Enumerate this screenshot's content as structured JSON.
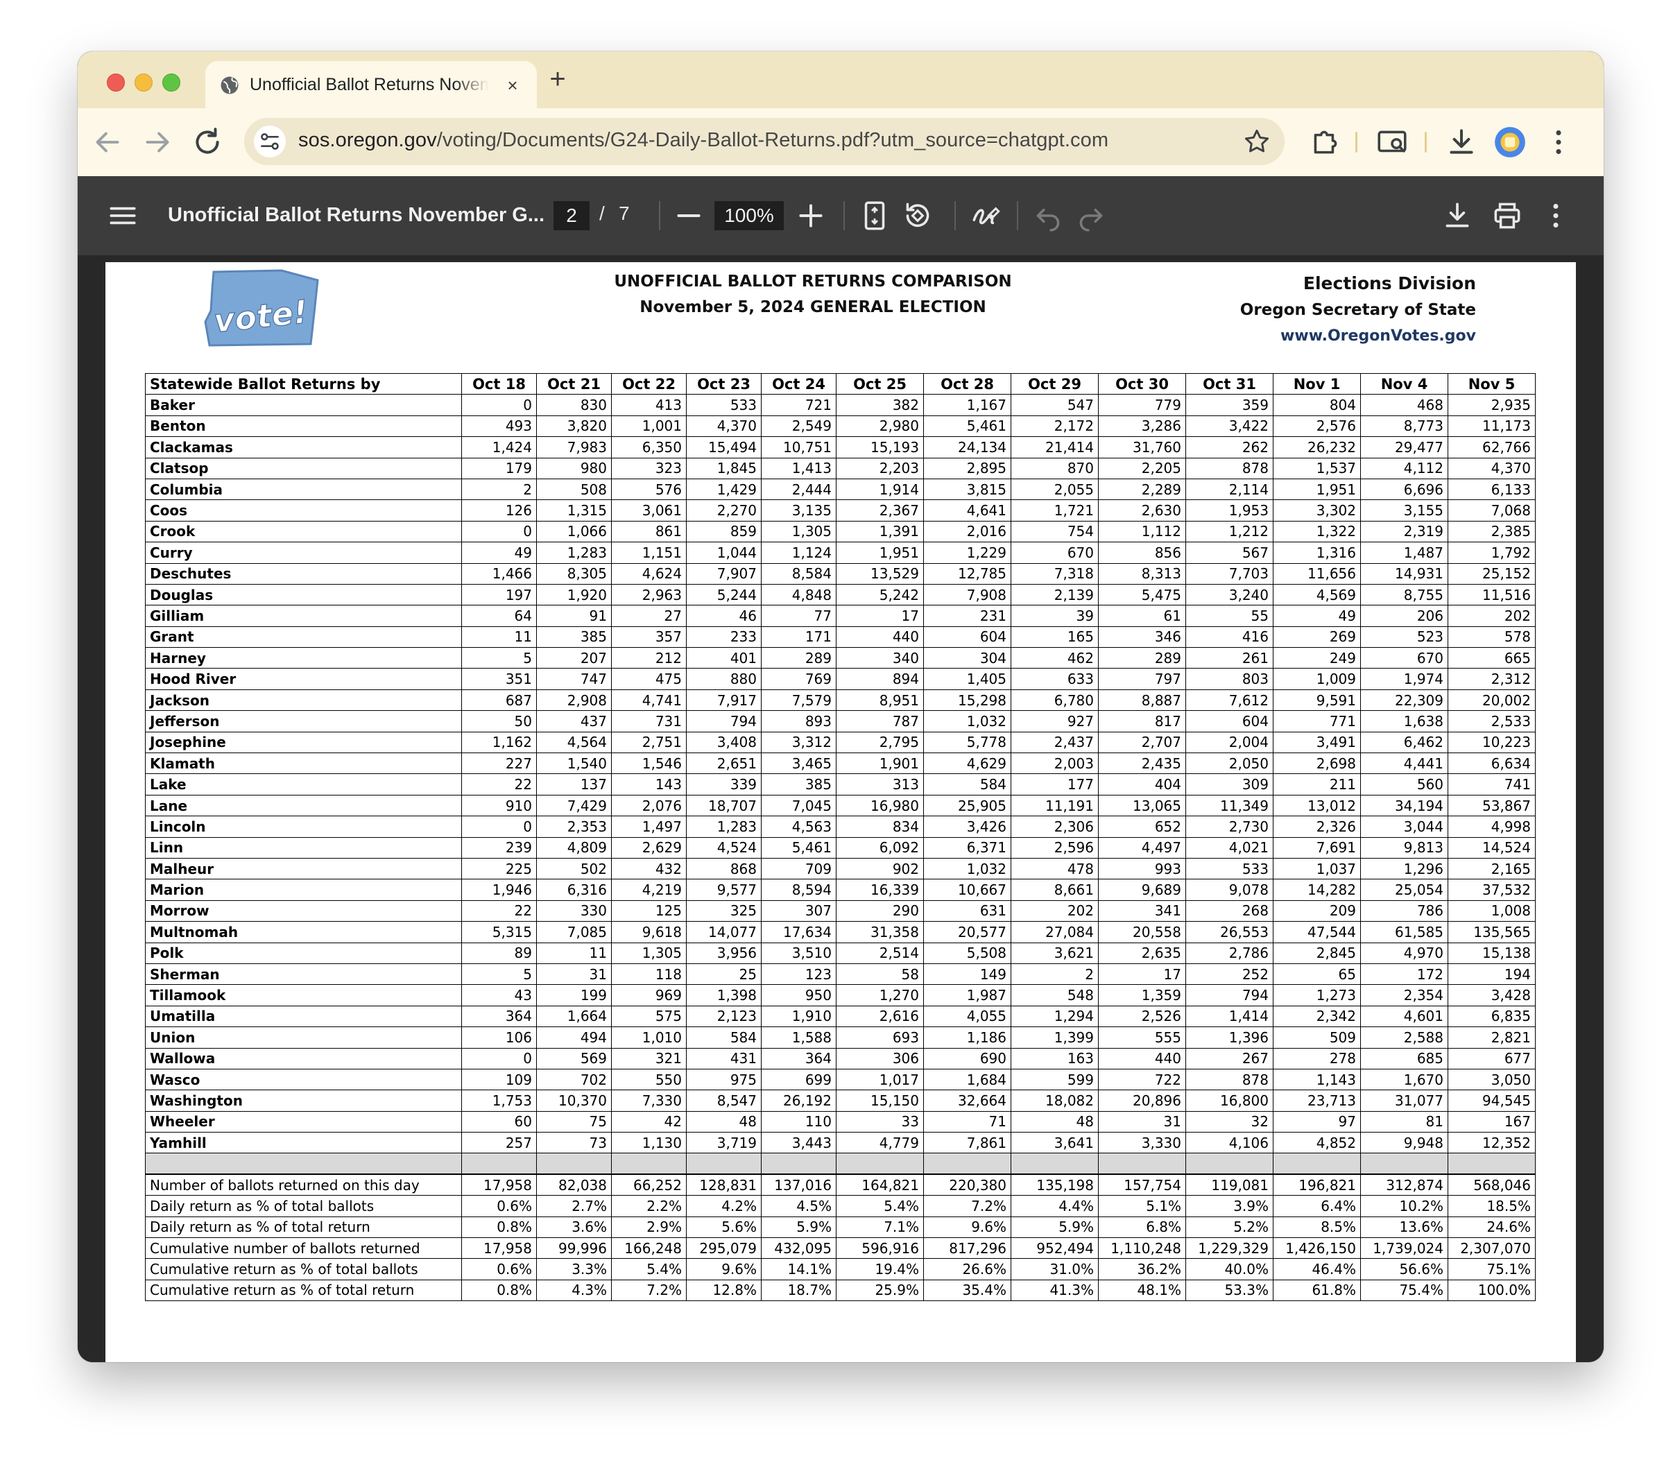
{
  "browser": {
    "tab_title": "Unofficial Ballot Returns November General Election",
    "close_label": "×",
    "new_tab_label": "+",
    "url_host": "sos.oregon.gov",
    "url_path": "/voting/Documents/G24-Daily-Ballot-Returns.pdf?utm_source=chatgpt.com",
    "icons": [
      "back-arrow-icon",
      "forward-arrow-icon",
      "reload-icon",
      "site-info-icon",
      "star-icon",
      "extensions-icon",
      "cast-screen-icon",
      "download-icon",
      "profile-icon",
      "menu-kebab-icon"
    ]
  },
  "viewer": {
    "title": "Unofficial Ballot Returns November G...",
    "page_current": "2",
    "page_sep": "/",
    "page_total": "7",
    "zoom": "100%",
    "zoom_out_label": "−",
    "zoom_in_label": "+",
    "colors": {
      "toolbar": "#3c3c3c",
      "background": "#282828"
    }
  },
  "document": {
    "logo_text": "vote!",
    "title_line1": "UNOFFICIAL BALLOT RETURNS COMPARISON",
    "title_line2": "November 5, 2024 GENERAL ELECTION",
    "division_line1": "Elections Division",
    "division_line2": "Oregon Secretary of State",
    "division_line3": "www.OregonVotes.gov"
  },
  "table": {
    "first_header": "Statewide Ballot Returns by",
    "dates": [
      "Oct 18",
      "Oct 21",
      "Oct 22",
      "Oct 23",
      "Oct 24",
      "Oct 25",
      "Oct 28",
      "Oct 29",
      "Oct 30",
      "Oct 31",
      "Nov 1",
      "Nov 4",
      "Nov 5"
    ],
    "counties": [
      {
        "name": "Baker",
        "values": [
          "0",
          "830",
          "413",
          "533",
          "721",
          "382",
          "1,167",
          "547",
          "779",
          "359",
          "804",
          "468",
          "2,935"
        ]
      },
      {
        "name": "Benton",
        "values": [
          "493",
          "3,820",
          "1,001",
          "4,370",
          "2,549",
          "2,980",
          "5,461",
          "2,172",
          "3,286",
          "3,422",
          "2,576",
          "8,773",
          "11,173"
        ]
      },
      {
        "name": "Clackamas",
        "values": [
          "1,424",
          "7,983",
          "6,350",
          "15,494",
          "10,751",
          "15,193",
          "24,134",
          "21,414",
          "31,760",
          "262",
          "26,232",
          "29,477",
          "62,766"
        ]
      },
      {
        "name": "Clatsop",
        "values": [
          "179",
          "980",
          "323",
          "1,845",
          "1,413",
          "2,203",
          "2,895",
          "870",
          "2,205",
          "878",
          "1,537",
          "4,112",
          "4,370"
        ]
      },
      {
        "name": "Columbia",
        "values": [
          "2",
          "508",
          "576",
          "1,429",
          "2,444",
          "1,914",
          "3,815",
          "2,055",
          "2,289",
          "2,114",
          "1,951",
          "6,696",
          "6,133"
        ]
      },
      {
        "name": "Coos",
        "values": [
          "126",
          "1,315",
          "3,061",
          "2,270",
          "3,135",
          "2,367",
          "4,641",
          "1,721",
          "2,630",
          "1,953",
          "3,302",
          "3,155",
          "7,068"
        ]
      },
      {
        "name": "Crook",
        "values": [
          "0",
          "1,066",
          "861",
          "859",
          "1,305",
          "1,391",
          "2,016",
          "754",
          "1,112",
          "1,212",
          "1,322",
          "2,319",
          "2,385"
        ]
      },
      {
        "name": "Curry",
        "values": [
          "49",
          "1,283",
          "1,151",
          "1,044",
          "1,124",
          "1,951",
          "1,229",
          "670",
          "856",
          "567",
          "1,316",
          "1,487",
          "1,792"
        ]
      },
      {
        "name": "Deschutes",
        "values": [
          "1,466",
          "8,305",
          "4,624",
          "7,907",
          "8,584",
          "13,529",
          "12,785",
          "7,318",
          "8,313",
          "7,703",
          "11,656",
          "14,931",
          "25,152"
        ]
      },
      {
        "name": "Douglas",
        "values": [
          "197",
          "1,920",
          "2,963",
          "5,244",
          "4,848",
          "5,242",
          "7,908",
          "2,139",
          "5,475",
          "3,240",
          "4,569",
          "8,755",
          "11,516"
        ]
      },
      {
        "name": "Gilliam",
        "values": [
          "64",
          "91",
          "27",
          "46",
          "77",
          "17",
          "231",
          "39",
          "61",
          "55",
          "49",
          "206",
          "202"
        ]
      },
      {
        "name": "Grant",
        "values": [
          "11",
          "385",
          "357",
          "233",
          "171",
          "440",
          "604",
          "165",
          "346",
          "416",
          "269",
          "523",
          "578"
        ]
      },
      {
        "name": "Harney",
        "values": [
          "5",
          "207",
          "212",
          "401",
          "289",
          "340",
          "304",
          "462",
          "289",
          "261",
          "249",
          "670",
          "665"
        ]
      },
      {
        "name": "Hood River",
        "values": [
          "351",
          "747",
          "475",
          "880",
          "769",
          "894",
          "1,405",
          "633",
          "797",
          "803",
          "1,009",
          "1,974",
          "2,312"
        ]
      },
      {
        "name": "Jackson",
        "values": [
          "687",
          "2,908",
          "4,741",
          "7,917",
          "7,579",
          "8,951",
          "15,298",
          "6,780",
          "8,887",
          "7,612",
          "9,591",
          "22,309",
          "20,002"
        ]
      },
      {
        "name": "Jefferson",
        "values": [
          "50",
          "437",
          "731",
          "794",
          "893",
          "787",
          "1,032",
          "927",
          "817",
          "604",
          "771",
          "1,638",
          "2,533"
        ]
      },
      {
        "name": "Josephine",
        "values": [
          "1,162",
          "4,564",
          "2,751",
          "3,408",
          "3,312",
          "2,795",
          "5,778",
          "2,437",
          "2,707",
          "2,004",
          "3,491",
          "6,462",
          "10,223"
        ]
      },
      {
        "name": "Klamath",
        "values": [
          "227",
          "1,540",
          "1,546",
          "2,651",
          "3,465",
          "1,901",
          "4,629",
          "2,003",
          "2,435",
          "2,050",
          "2,698",
          "4,441",
          "6,634"
        ]
      },
      {
        "name": "Lake",
        "values": [
          "22",
          "137",
          "143",
          "339",
          "385",
          "313",
          "584",
          "177",
          "404",
          "309",
          "211",
          "560",
          "741"
        ]
      },
      {
        "name": "Lane",
        "values": [
          "910",
          "7,429",
          "2,076",
          "18,707",
          "7,045",
          "16,980",
          "25,905",
          "11,191",
          "13,065",
          "11,349",
          "13,012",
          "34,194",
          "53,867"
        ]
      },
      {
        "name": "Lincoln",
        "values": [
          "0",
          "2,353",
          "1,497",
          "1,283",
          "4,563",
          "834",
          "3,426",
          "2,306",
          "652",
          "2,730",
          "2,326",
          "3,044",
          "4,998"
        ]
      },
      {
        "name": "Linn",
        "values": [
          "239",
          "4,809",
          "2,629",
          "4,524",
          "5,461",
          "6,092",
          "6,371",
          "2,596",
          "4,497",
          "4,021",
          "7,691",
          "9,813",
          "14,524"
        ]
      },
      {
        "name": "Malheur",
        "values": [
          "225",
          "502",
          "432",
          "868",
          "709",
          "902",
          "1,032",
          "478",
          "993",
          "533",
          "1,037",
          "1,296",
          "2,165"
        ]
      },
      {
        "name": "Marion",
        "values": [
          "1,946",
          "6,316",
          "4,219",
          "9,577",
          "8,594",
          "16,339",
          "10,667",
          "8,661",
          "9,689",
          "9,078",
          "14,282",
          "25,054",
          "37,532"
        ]
      },
      {
        "name": "Morrow",
        "values": [
          "22",
          "330",
          "125",
          "325",
          "307",
          "290",
          "631",
          "202",
          "341",
          "268",
          "209",
          "786",
          "1,008"
        ]
      },
      {
        "name": "Multnomah",
        "values": [
          "5,315",
          "7,085",
          "9,618",
          "14,077",
          "17,634",
          "31,358",
          "20,577",
          "27,084",
          "20,558",
          "26,553",
          "47,544",
          "61,585",
          "135,565"
        ]
      },
      {
        "name": "Polk",
        "values": [
          "89",
          "11",
          "1,305",
          "3,956",
          "3,510",
          "2,514",
          "5,508",
          "3,621",
          "2,635",
          "2,786",
          "2,845",
          "4,970",
          "15,138"
        ]
      },
      {
        "name": "Sherman",
        "values": [
          "5",
          "31",
          "118",
          "25",
          "123",
          "58",
          "149",
          "2",
          "17",
          "252",
          "65",
          "172",
          "194"
        ]
      },
      {
        "name": "Tillamook",
        "values": [
          "43",
          "199",
          "969",
          "1,398",
          "950",
          "1,270",
          "1,987",
          "548",
          "1,359",
          "794",
          "1,273",
          "2,354",
          "3,428"
        ]
      },
      {
        "name": "Umatilla",
        "values": [
          "364",
          "1,664",
          "575",
          "2,123",
          "1,910",
          "2,616",
          "4,055",
          "1,294",
          "2,526",
          "1,414",
          "2,342",
          "4,601",
          "6,835"
        ]
      },
      {
        "name": "Union",
        "values": [
          "106",
          "494",
          "1,010",
          "584",
          "1,588",
          "693",
          "1,186",
          "1,399",
          "555",
          "1,396",
          "509",
          "2,588",
          "2,821"
        ]
      },
      {
        "name": "Wallowa",
        "values": [
          "0",
          "569",
          "321",
          "431",
          "364",
          "306",
          "690",
          "163",
          "440",
          "267",
          "278",
          "685",
          "677"
        ]
      },
      {
        "name": "Wasco",
        "values": [
          "109",
          "702",
          "550",
          "975",
          "699",
          "1,017",
          "1,684",
          "599",
          "722",
          "878",
          "1,143",
          "1,670",
          "3,050"
        ]
      },
      {
        "name": "Washington",
        "values": [
          "1,753",
          "10,370",
          "7,330",
          "8,547",
          "26,192",
          "15,150",
          "32,664",
          "18,082",
          "20,896",
          "16,800",
          "23,713",
          "31,077",
          "94,545"
        ]
      },
      {
        "name": "Wheeler",
        "values": [
          "60",
          "75",
          "42",
          "48",
          "110",
          "33",
          "71",
          "48",
          "31",
          "32",
          "97",
          "81",
          "167"
        ]
      },
      {
        "name": "Yamhill",
        "values": [
          "257",
          "73",
          "1,130",
          "3,719",
          "3,443",
          "4,779",
          "7,861",
          "3,641",
          "3,330",
          "4,106",
          "4,852",
          "9,948",
          "12,352"
        ]
      }
    ],
    "summary": [
      {
        "label": "Number of ballots returned on this day",
        "values": [
          "17,958",
          "82,038",
          "66,252",
          "128,831",
          "137,016",
          "164,821",
          "220,380",
          "135,198",
          "157,754",
          "119,081",
          "196,821",
          "312,874",
          "568,046"
        ]
      },
      {
        "label": "Daily return as % of total ballots",
        "values": [
          "0.6%",
          "2.7%",
          "2.2%",
          "4.2%",
          "4.5%",
          "5.4%",
          "7.2%",
          "4.4%",
          "5.1%",
          "3.9%",
          "6.4%",
          "10.2%",
          "18.5%"
        ]
      },
      {
        "label": "Daily return as % of total return",
        "values": [
          "0.8%",
          "3.6%",
          "2.9%",
          "5.6%",
          "5.9%",
          "7.1%",
          "9.6%",
          "5.9%",
          "6.8%",
          "5.2%",
          "8.5%",
          "13.6%",
          "24.6%"
        ]
      },
      {
        "label": "Cumulative number of ballots returned",
        "values": [
          "17,958",
          "99,996",
          "166,248",
          "295,079",
          "432,095",
          "596,916",
          "817,296",
          "952,494",
          "1,110,248",
          "1,229,329",
          "1,426,150",
          "1,739,024",
          "2,307,070"
        ]
      },
      {
        "label": "Cumulative return as % of total ballots",
        "values": [
          "0.6%",
          "3.3%",
          "5.4%",
          "9.6%",
          "14.1%",
          "19.4%",
          "26.6%",
          "31.0%",
          "36.2%",
          "40.0%",
          "46.4%",
          "56.6%",
          "75.1%"
        ]
      },
      {
        "label": "Cumulative return as % of total return",
        "values": [
          "0.8%",
          "4.3%",
          "7.2%",
          "12.8%",
          "18.7%",
          "25.9%",
          "35.4%",
          "41.3%",
          "48.1%",
          "53.3%",
          "61.8%",
          "75.4%",
          "100.0%"
        ]
      }
    ]
  }
}
